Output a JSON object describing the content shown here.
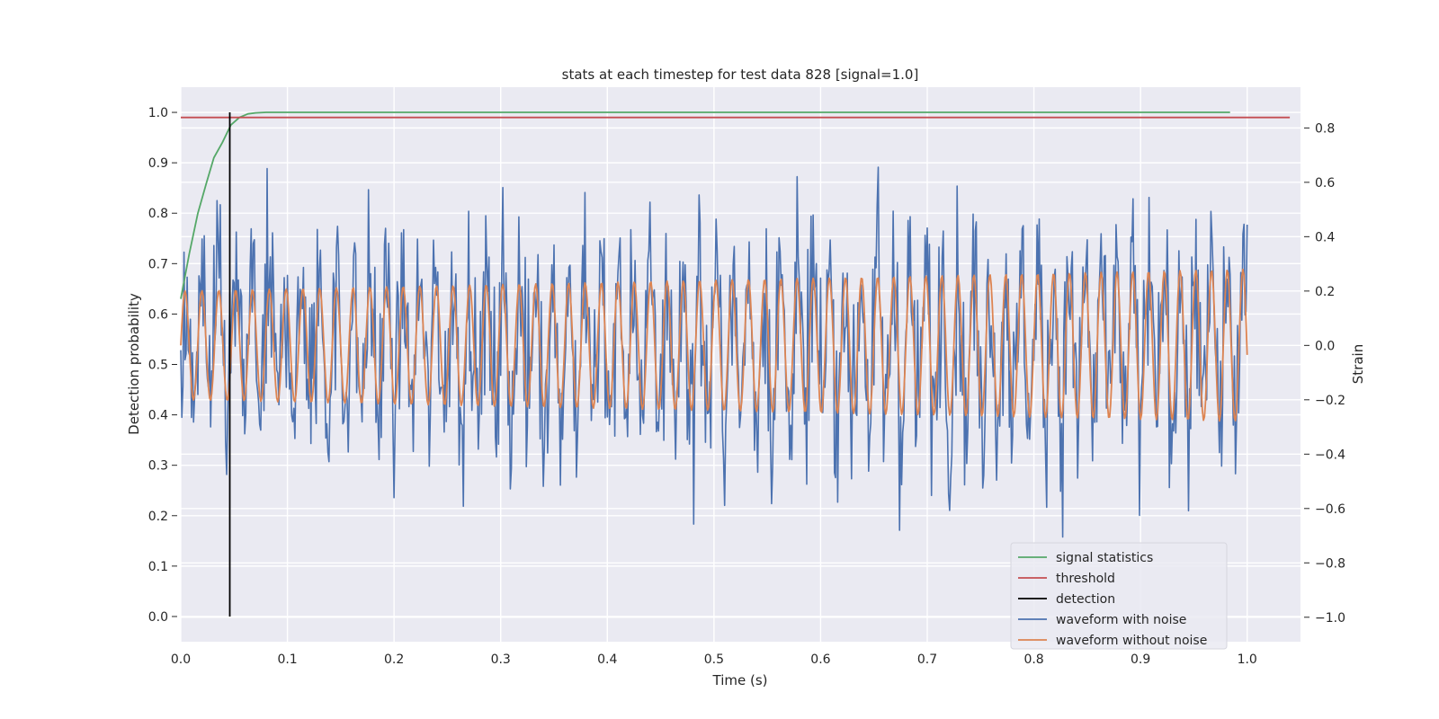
{
  "chart_data": {
    "type": "line",
    "title": "stats at each timestep for test data 828 [signal=1.0]",
    "xlabel": "Time (s)",
    "ylabel": "Detection probability",
    "y2label": "Strain",
    "xlim": [
      0.0,
      1.05
    ],
    "ylim": [
      -0.05,
      1.05
    ],
    "y2lim": [
      -1.09,
      0.95
    ],
    "xticks": [
      "0.0",
      "0.1",
      "0.2",
      "0.3",
      "0.4",
      "0.5",
      "0.6",
      "0.7",
      "0.8",
      "0.9",
      "1.0"
    ],
    "xtick_values": [
      0.0,
      0.1,
      0.2,
      0.3,
      0.4,
      0.5,
      0.6,
      0.7,
      0.8,
      0.9,
      1.0
    ],
    "yticks": [
      "0.0",
      "0.1",
      "0.2",
      "0.3",
      "0.4",
      "0.5",
      "0.6",
      "0.7",
      "0.8",
      "0.9",
      "1.0"
    ],
    "ytick_values": [
      0.0,
      0.1,
      0.2,
      0.3,
      0.4,
      0.5,
      0.6,
      0.7,
      0.8,
      0.9,
      1.0
    ],
    "y2ticks": [
      "−1.0",
      "−0.8",
      "−0.6",
      "−0.4",
      "−0.2",
      "0.0",
      "0.2",
      "0.4",
      "0.6",
      "0.8"
    ],
    "y2tick_values": [
      -1.0,
      -0.8,
      -0.6,
      -0.4,
      -0.2,
      0.0,
      0.2,
      0.4,
      0.6,
      0.8
    ],
    "grid": true,
    "legend_position": "lower-right",
    "series": [
      {
        "name": "signal statistics",
        "axis": "left",
        "color": "#55a868",
        "x": [
          0.0,
          0.008,
          0.016,
          0.024,
          0.031,
          0.039,
          0.047,
          0.055,
          0.063,
          0.07,
          0.08,
          0.09,
          0.1,
          0.2,
          0.3,
          0.4,
          0.5,
          0.6,
          0.7,
          0.8,
          0.9,
          0.984
        ],
        "y": [
          0.63,
          0.72,
          0.8,
          0.86,
          0.91,
          0.94,
          0.975,
          0.99,
          0.997,
          0.999,
          1.0,
          1.0,
          1.0,
          1.0,
          1.0,
          1.0,
          1.0,
          1.0,
          1.0,
          1.0,
          1.0,
          1.0
        ]
      },
      {
        "name": "threshold",
        "axis": "left",
        "color": "#c44e52",
        "x": [
          0.0,
          1.04
        ],
        "y": [
          0.99,
          0.99
        ]
      },
      {
        "name": "detection",
        "axis": "left",
        "color": "#000000",
        "x": [
          0.046,
          0.046
        ],
        "y": [
          0.0,
          1.0
        ]
      },
      {
        "name": "waveform with noise",
        "axis": "right",
        "color": "#4c72b0",
        "generator": "noisy",
        "x_range": [
          0.0,
          1.0
        ],
        "points": 1000,
        "strain_range": [
          -1.0,
          0.85
        ]
      },
      {
        "name": "waveform without noise",
        "axis": "right",
        "color": "#dd8452",
        "generator": "clean",
        "x_range": [
          0.0,
          1.0
        ],
        "points": 1000,
        "frequency_hz": 63,
        "amplitude_start": 0.2,
        "amplitude_end": 0.28
      }
    ]
  }
}
